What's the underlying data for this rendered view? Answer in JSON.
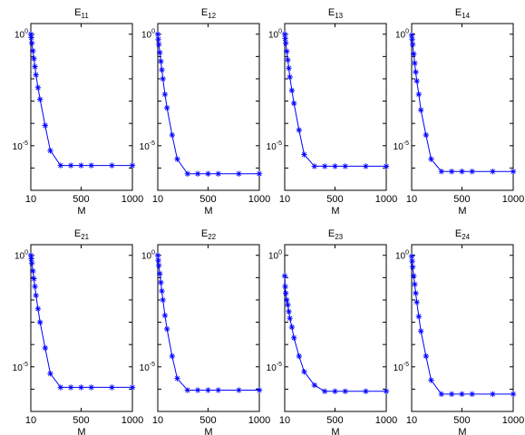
{
  "figure": {
    "layout": {
      "rows": 2,
      "cols": 4
    },
    "series_color": "#0000ff",
    "marker": "asterisk"
  },
  "chart_data": [
    {
      "type": "line",
      "title": "E",
      "title_sub": "11",
      "xlabel": "M",
      "ylabel": "",
      "y_scale": "log",
      "grid": false,
      "xlim": [
        10,
        1000
      ],
      "ylim": [
        1e-07,
        3
      ],
      "xticks": [
        10,
        500,
        1000
      ],
      "yticks": [
        {
          "base": "10",
          "exp": "0",
          "value": 1
        },
        {
          "base": "10",
          "exp": "-5",
          "value": 1e-05
        }
      ],
      "x": [
        10,
        15,
        20,
        30,
        40,
        50,
        60,
        80,
        100,
        150,
        200,
        300,
        400,
        500,
        600,
        800,
        1000
      ],
      "y": [
        1,
        0.7,
        0.4,
        0.18,
        0.08,
        0.035,
        0.015,
        0.004,
        0.0012,
        8e-05,
        6e-06,
        1.3e-06,
        1.3e-06,
        1.3e-06,
        1.3e-06,
        1.3e-06,
        1.3e-06
      ]
    },
    {
      "type": "line",
      "title": "E",
      "title_sub": "12",
      "xlabel": "M",
      "ylabel": "",
      "y_scale": "log",
      "grid": false,
      "xlim": [
        10,
        1000
      ],
      "ylim": [
        1e-07,
        3
      ],
      "xticks": [
        10,
        500,
        1000
      ],
      "yticks": [
        {
          "base": "10",
          "exp": "0",
          "value": 1
        },
        {
          "base": "10",
          "exp": "-5",
          "value": 1e-05
        }
      ],
      "x": [
        10,
        15,
        20,
        30,
        40,
        50,
        60,
        80,
        100,
        150,
        200,
        300,
        400,
        500,
        600,
        800,
        1000
      ],
      "y": [
        1,
        0.6,
        0.35,
        0.15,
        0.06,
        0.025,
        0.01,
        0.002,
        0.0005,
        3e-05,
        2.5e-06,
        5.5e-07,
        5.5e-07,
        5.5e-07,
        5.5e-07,
        5.5e-07,
        5.5e-07
      ]
    },
    {
      "type": "line",
      "title": "E",
      "title_sub": "13",
      "xlabel": "M",
      "ylabel": "",
      "y_scale": "log",
      "grid": false,
      "xlim": [
        10,
        1000
      ],
      "ylim": [
        1e-07,
        3
      ],
      "xticks": [
        10,
        500,
        1000
      ],
      "yticks": [
        {
          "base": "10",
          "exp": "0",
          "value": 1
        },
        {
          "base": "10",
          "exp": "-5",
          "value": 1e-05
        }
      ],
      "x": [
        10,
        15,
        20,
        30,
        40,
        50,
        60,
        80,
        100,
        150,
        200,
        300,
        400,
        500,
        600,
        800,
        1000
      ],
      "y": [
        1,
        0.65,
        0.4,
        0.17,
        0.07,
        0.03,
        0.012,
        0.003,
        0.0008,
        5e-05,
        4e-06,
        1.2e-06,
        1.2e-06,
        1.2e-06,
        1.2e-06,
        1.2e-06,
        1.2e-06
      ]
    },
    {
      "type": "line",
      "title": "E",
      "title_sub": "14",
      "xlabel": "M",
      "ylabel": "",
      "y_scale": "log",
      "grid": false,
      "xlim": [
        10,
        1000
      ],
      "ylim": [
        1e-07,
        3
      ],
      "xticks": [
        10,
        500,
        1000
      ],
      "yticks": [
        {
          "base": "10",
          "exp": "0",
          "value": 1
        },
        {
          "base": "10",
          "exp": "-5",
          "value": 1e-05
        }
      ],
      "x": [
        10,
        15,
        20,
        30,
        40,
        50,
        60,
        80,
        100,
        150,
        200,
        300,
        400,
        500,
        600,
        800,
        1000
      ],
      "y": [
        0.9,
        0.6,
        0.35,
        0.13,
        0.05,
        0.02,
        0.008,
        0.002,
        0.0004,
        3e-05,
        2.5e-06,
        7e-07,
        7e-07,
        7e-07,
        7e-07,
        7e-07,
        7e-07
      ]
    },
    {
      "type": "line",
      "title": "E",
      "title_sub": "21",
      "xlabel": "M",
      "ylabel": "",
      "y_scale": "log",
      "grid": false,
      "xlim": [
        10,
        1000
      ],
      "ylim": [
        1e-07,
        3
      ],
      "xticks": [
        10,
        500,
        1000
      ],
      "yticks": [
        {
          "base": "10",
          "exp": "0",
          "value": 1
        },
        {
          "base": "10",
          "exp": "-5",
          "value": 1e-05
        }
      ],
      "x": [
        10,
        15,
        20,
        30,
        40,
        50,
        60,
        80,
        100,
        150,
        200,
        300,
        400,
        500,
        600,
        800,
        1000
      ],
      "y": [
        1,
        0.7,
        0.45,
        0.2,
        0.09,
        0.04,
        0.016,
        0.004,
        0.001,
        7e-05,
        5e-06,
        1.2e-06,
        1.2e-06,
        1.2e-06,
        1.2e-06,
        1.2e-06,
        1.2e-06
      ]
    },
    {
      "type": "line",
      "title": "E",
      "title_sub": "22",
      "xlabel": "M",
      "ylabel": "",
      "y_scale": "log",
      "grid": false,
      "xlim": [
        10,
        1000
      ],
      "ylim": [
        1e-07,
        3
      ],
      "xticks": [
        10,
        500,
        1000
      ],
      "yticks": [
        {
          "base": "10",
          "exp": "0",
          "value": 1
        },
        {
          "base": "10",
          "exp": "-5",
          "value": 1e-05
        }
      ],
      "x": [
        10,
        15,
        20,
        30,
        40,
        50,
        60,
        80,
        100,
        150,
        200,
        300,
        400,
        500,
        600,
        800,
        1000
      ],
      "y": [
        1,
        0.6,
        0.35,
        0.15,
        0.06,
        0.025,
        0.01,
        0.002,
        0.0005,
        3e-05,
        3e-06,
        9e-07,
        9e-07,
        9e-07,
        9e-07,
        9e-07,
        9e-07
      ]
    },
    {
      "type": "line",
      "title": "E",
      "title_sub": "23",
      "xlabel": "M",
      "ylabel": "",
      "y_scale": "log",
      "grid": false,
      "xlim": [
        10,
        1000
      ],
      "ylim": [
        1e-07,
        3
      ],
      "xticks": [
        10,
        500,
        1000
      ],
      "yticks": [
        {
          "base": "10",
          "exp": "0",
          "value": 1
        },
        {
          "base": "10",
          "exp": "-5",
          "value": 1e-05
        }
      ],
      "x": [
        10,
        15,
        20,
        30,
        40,
        50,
        60,
        80,
        100,
        150,
        200,
        300,
        400,
        500,
        600,
        800,
        1000
      ],
      "y": [
        0.12,
        0.04,
        0.02,
        0.01,
        0.006,
        0.003,
        0.0015,
        0.0006,
        0.0002,
        3e-05,
        6e-06,
        1.5e-06,
        8e-07,
        8e-07,
        8e-07,
        8e-07,
        8e-07
      ]
    },
    {
      "type": "line",
      "title": "E",
      "title_sub": "24",
      "xlabel": "M",
      "ylabel": "",
      "y_scale": "log",
      "grid": false,
      "xlim": [
        10,
        1000
      ],
      "ylim": [
        1e-07,
        3
      ],
      "xticks": [
        10,
        500,
        1000
      ],
      "yticks": [
        {
          "base": "10",
          "exp": "0",
          "value": 1
        },
        {
          "base": "10",
          "exp": "-5",
          "value": 1e-05
        }
      ],
      "x": [
        10,
        15,
        20,
        30,
        40,
        50,
        60,
        80,
        100,
        150,
        200,
        300,
        400,
        500,
        600,
        800,
        1000
      ],
      "y": [
        0.9,
        0.55,
        0.3,
        0.12,
        0.05,
        0.02,
        0.008,
        0.0018,
        0.0004,
        3e-05,
        2.5e-06,
        6e-07,
        6e-07,
        6e-07,
        6e-07,
        6e-07,
        6e-07
      ]
    }
  ]
}
